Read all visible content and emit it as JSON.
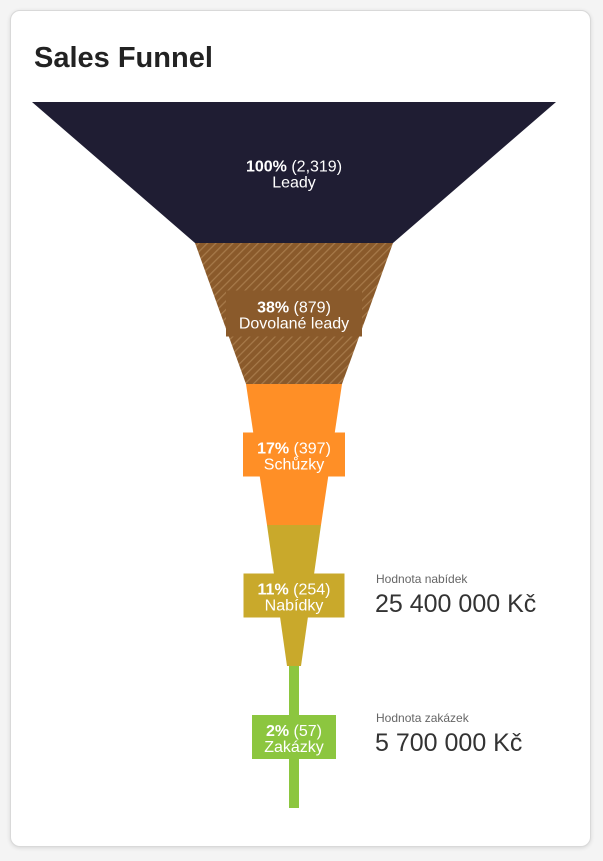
{
  "title": "Sales Funnel",
  "chart_data": {
    "type": "funnel",
    "stages": [
      {
        "label": "Leady",
        "percent": "100%",
        "count": "(2,319)",
        "value": 2319,
        "color": "#1f1d33",
        "pattern": "solid"
      },
      {
        "label": "Dovolané leady",
        "percent": "38%",
        "count": "(879)",
        "value": 879,
        "color": "#8a5a2b",
        "pattern": "hatched"
      },
      {
        "label": "Schůzky",
        "percent": "17%",
        "count": "(397)",
        "value": 397,
        "color": "#ff8f26",
        "pattern": "solid"
      },
      {
        "label": "Nabídky",
        "percent": "11%",
        "count": "(254)",
        "value": 254,
        "color": "#c9a92b",
        "pattern": "solid"
      },
      {
        "label": "Zakázky",
        "percent": "2%",
        "count": "(57)",
        "value": 57,
        "color": "#8cc63f",
        "pattern": "solid"
      }
    ]
  },
  "stats": [
    {
      "caption": "Hodnota nabídek",
      "value": "25 400 000 Kč"
    },
    {
      "caption": "Hodnota zakázek",
      "value": "5 700 000 Kč"
    }
  ]
}
